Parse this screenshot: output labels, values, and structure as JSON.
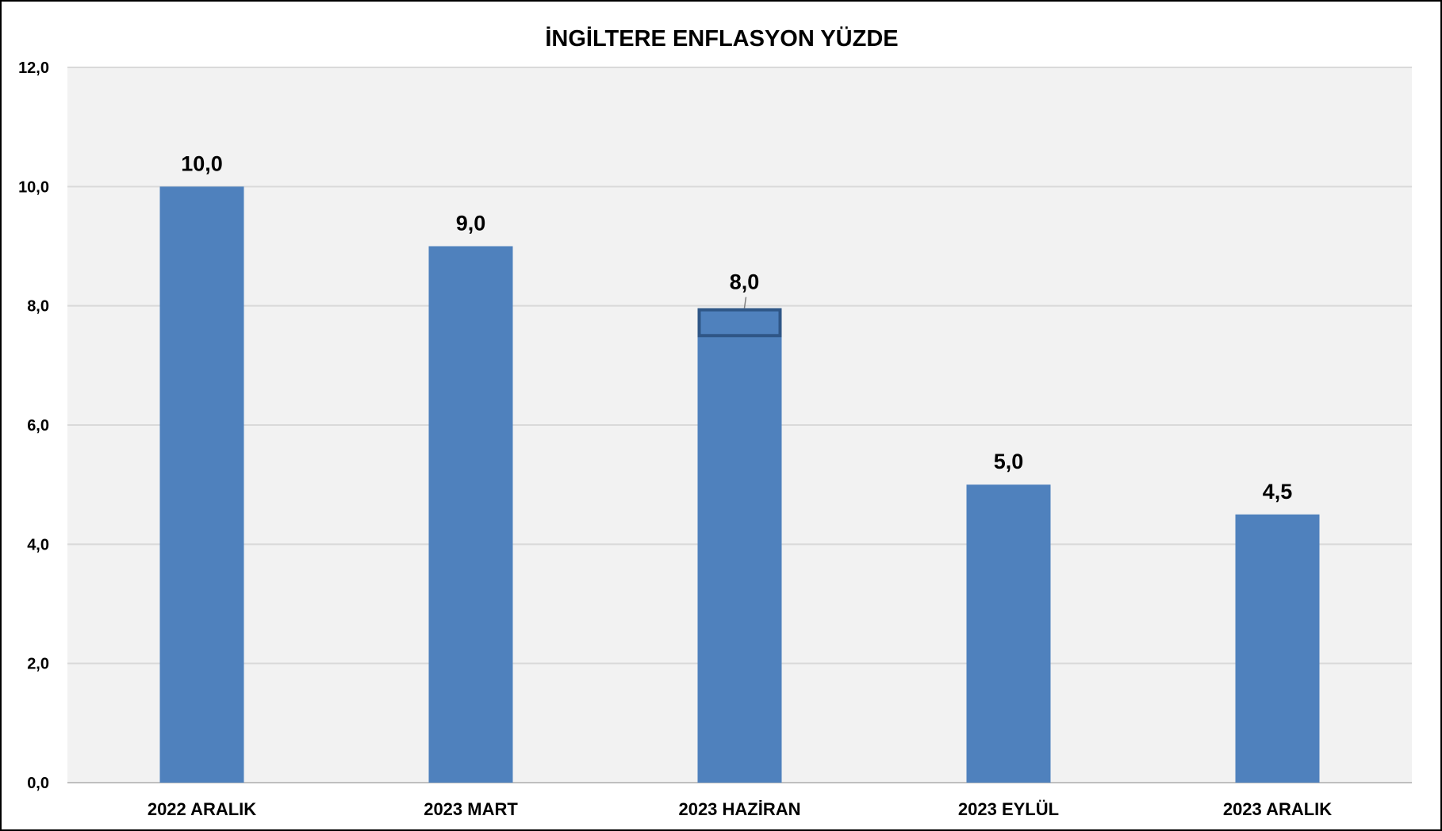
{
  "chart_data": {
    "type": "bar",
    "title": "İNGİLTERE ENFLASYON  YÜZDE",
    "xlabel": "",
    "ylabel": "",
    "categories": [
      "2022 ARALIK",
      "2023 MART",
      "2023 HAZİRAN",
      "2023 EYLÜL",
      "2023 ARALIK"
    ],
    "values": [
      10.0,
      9.0,
      8.0,
      5.0,
      4.5
    ],
    "data_labels": [
      "10,0",
      "9,0",
      "8,0",
      "5,0",
      "4,5"
    ],
    "ylim": [
      0,
      12
    ],
    "y_ticks": [
      0,
      2,
      4,
      6,
      8,
      10,
      12
    ],
    "y_tick_labels": [
      "0,0",
      "2,0",
      "4,0",
      "6,0",
      "8,0",
      "10,0",
      "12,0"
    ],
    "grid": true,
    "legend": "none",
    "highlight": {
      "category_index": 2,
      "solid_value": 7.5
    },
    "colors": {
      "bar": "#4f81bd",
      "bar_highlight_border": "#2f5686",
      "plot_background": "#f2f2f2",
      "gridline": "#d9d9d9",
      "frame": "#000000"
    }
  }
}
